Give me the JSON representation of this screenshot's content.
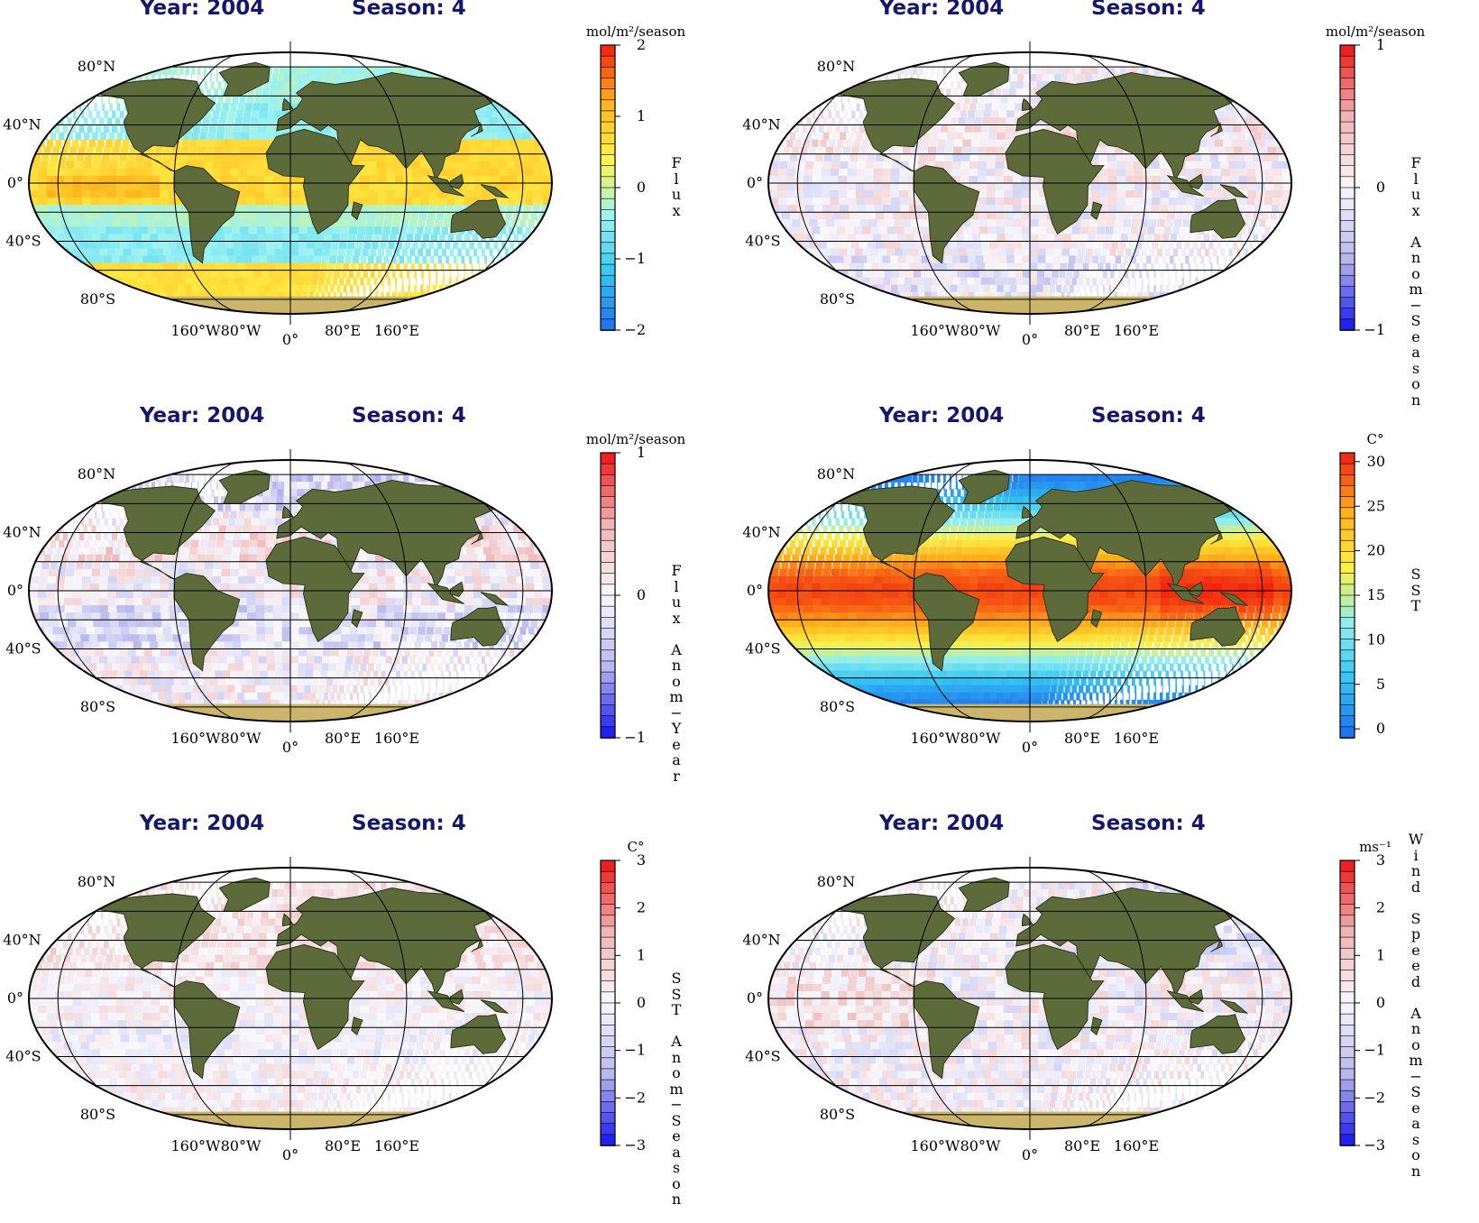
{
  "colors": {
    "title_text": "#16166e",
    "land": "#5d6b3a",
    "ice": "#cbb56a",
    "frame": "#000000",
    "flux_diverging": [
      "#1e6ef0",
      "#34c7ef",
      "#9cf2f2",
      "#fff44a",
      "#ffb21a",
      "#f01e10"
    ],
    "anomaly_diverging": [
      "#1414f0",
      "#b8b8ee",
      "#f8f8fc",
      "#f0b4b4",
      "#ee1414"
    ],
    "sst_ramp": [
      "#1e6ef0",
      "#33c4f2",
      "#90eef0",
      "#fff040",
      "#ffac1a",
      "#f01e10"
    ]
  },
  "lat_labels": [
    "80°N",
    "40°N",
    "0°",
    "40°S",
    "80°S"
  ],
  "lon_labels": [
    "160°W",
    "80°W",
    "0°",
    "80°E",
    "160°E"
  ],
  "panels": [
    {
      "year_label": "Year: 2004",
      "season_label": "Season: 4",
      "unit": "mol/m²/season",
      "variable": "Flux",
      "colorbar": {
        "palette": "flux",
        "min": -2,
        "max": 2,
        "ticks": [
          "2",
          "1",
          "0",
          "−1",
          "−2"
        ]
      },
      "field_pattern": "flux"
    },
    {
      "year_label": "Year: 2004",
      "season_label": "Season: 4",
      "unit": "mol/m²/season",
      "variable": "Flux Anom−Season",
      "colorbar": {
        "palette": "anomaly",
        "min": -1,
        "max": 1,
        "ticks": [
          "1",
          "0",
          "−1"
        ]
      },
      "field_pattern": "flux_anom_season"
    },
    {
      "year_label": "Year: 2004",
      "season_label": "Season: 4",
      "unit": "mol/m²/season",
      "variable": "Flux Anom−Year",
      "colorbar": {
        "palette": "anomaly",
        "min": -1,
        "max": 1,
        "ticks": [
          "1",
          "0",
          "−1"
        ]
      },
      "field_pattern": "flux_anom_year"
    },
    {
      "year_label": "Year: 2004",
      "season_label": "Season: 4",
      "unit": "C°",
      "variable": "SST",
      "colorbar": {
        "palette": "sst",
        "min": -1,
        "max": 31,
        "ticks": [
          "30",
          "25",
          "20",
          "15",
          "10",
          "5",
          "0"
        ]
      },
      "field_pattern": "sst"
    },
    {
      "year_label": "Year: 2004",
      "season_label": "Season: 4",
      "unit": "C°",
      "variable": "SST Anom−Season",
      "colorbar": {
        "palette": "anomaly",
        "min": -3,
        "max": 3,
        "ticks": [
          "3",
          "2",
          "1",
          "0",
          "−1",
          "−2",
          "−3"
        ]
      },
      "field_pattern": "sst_anom"
    },
    {
      "year_label": "Year: 2004",
      "season_label": "Season: 4",
      "unit": "ms⁻¹",
      "variable": "Wind Speed Anom−Season",
      "colorbar": {
        "palette": "anomaly",
        "min": -3,
        "max": 3,
        "ticks": [
          "3",
          "2",
          "1",
          "0",
          "−1",
          "−2",
          "−3"
        ]
      },
      "field_pattern": "wind_anom"
    }
  ]
}
